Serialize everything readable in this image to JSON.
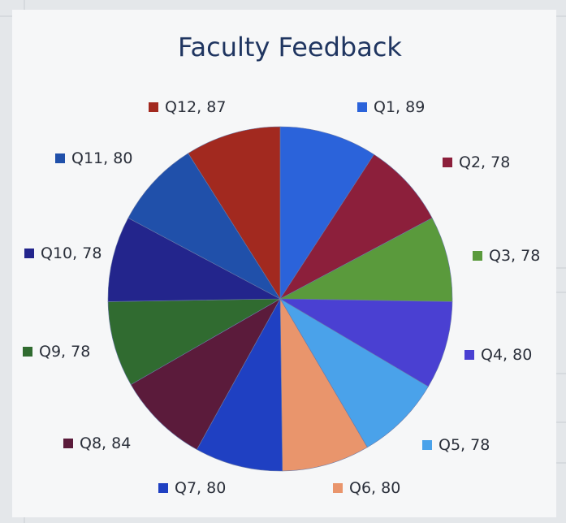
{
  "chart_data": {
    "type": "pie",
    "title": "Faculty Feedback",
    "categories": [
      "Q1",
      "Q2",
      "Q3",
      "Q4",
      "Q5",
      "Q6",
      "Q7",
      "Q8",
      "Q9",
      "Q10",
      "Q11",
      "Q12"
    ],
    "values": [
      89,
      78,
      78,
      80,
      78,
      80,
      80,
      84,
      78,
      78,
      80,
      87
    ],
    "colors": [
      "#2b63da",
      "#8c1f3b",
      "#5a9a3c",
      "#4a40d2",
      "#4aa2ea",
      "#e9956c",
      "#1f40c2",
      "#5b1b3b",
      "#306b30",
      "#23258c",
      "#2050aa",
      "#a2291f"
    ],
    "label_separator": ", "
  }
}
